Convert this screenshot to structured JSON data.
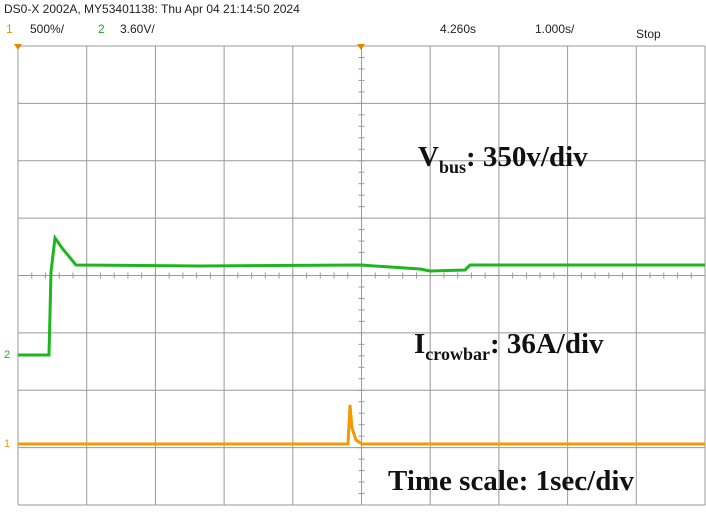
{
  "header": {
    "title": "DS0-X 2002A, MY53401138: Thu Apr 04 21:14:50 2024",
    "channel1": {
      "number": "1",
      "scale": "500%/"
    },
    "channel2": {
      "number": "2",
      "scale": "3.60V/"
    },
    "delay": "4.260s",
    "timebase": "1.000s/",
    "status": "Stop"
  },
  "annotations": [
    {
      "symbol": "V",
      "subscript": "bus",
      "text": ": 350v/div"
    },
    {
      "symbol": "I",
      "subscript": "crowbar",
      "text": ": 36A/div"
    },
    {
      "text": "Time scale: 1sec/div"
    }
  ]
}
